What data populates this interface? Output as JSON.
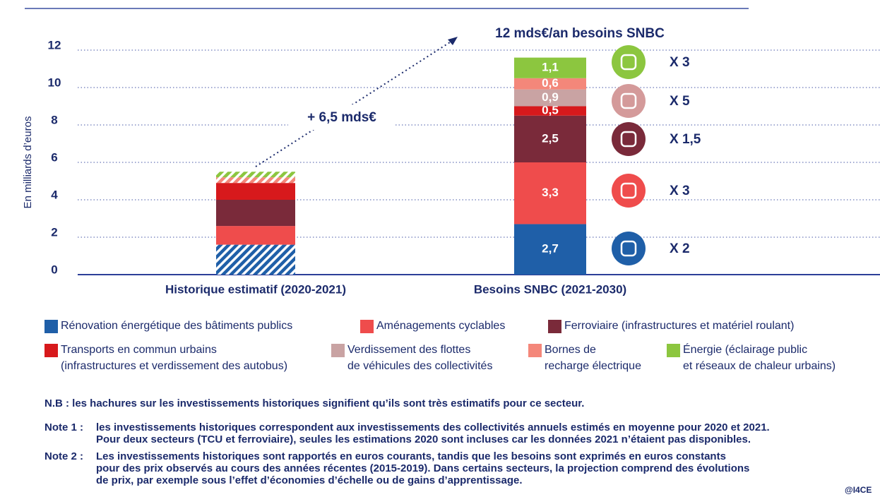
{
  "chart_data": {
    "type": "bar",
    "stacked": true,
    "y_label": "En milliards d’euros",
    "categories": [
      "Historique estimatif (2020-2021)",
      "Besoins SNBC (2021-2030)"
    ],
    "ylim": [
      0,
      12
    ],
    "yticks": [
      0,
      2,
      4,
      6,
      8,
      10,
      12
    ],
    "grid": true,
    "series": [
      {
        "name": "Rénovation énergétique des bâtiments publics",
        "color": "#1f5fa8",
        "values": [
          1.6,
          2.7
        ],
        "value_labels": [
          null,
          "2,7"
        ],
        "hatched": [
          true,
          false
        ]
      },
      {
        "name": "Aménagements cyclables",
        "color": "#ef4c4c",
        "values": [
          1.0,
          3.3
        ],
        "value_labels": [
          null,
          "3,3"
        ],
        "hatched": [
          false,
          false
        ]
      },
      {
        "name": "Ferroviaire (infrastructures et matériel roulant)",
        "color": "#7a2a3a",
        "values": [
          1.4,
          2.5
        ],
        "value_labels": [
          null,
          "2,5"
        ],
        "hatched": [
          false,
          false
        ]
      },
      {
        "name": "Transports en commun urbains\n(infrastructures et verdissement des autobus)",
        "color": "#d7191c",
        "values": [
          0.9,
          0.5
        ],
        "value_labels": [
          null,
          "0,5"
        ],
        "hatched": [
          false,
          false
        ]
      },
      {
        "name": "Verdissement des flottes\nde véhicules des collectivités",
        "color": "#c9a3a3",
        "values": [
          0,
          0.9
        ],
        "value_labels": [
          null,
          "0,9"
        ],
        "hatched": [
          true,
          false
        ]
      },
      {
        "name": "Bornes de\nrecharge électrique",
        "color": "#f4877a",
        "values": [
          0.3,
          0.6
        ],
        "value_labels": [
          null,
          "0,6"
        ],
        "hatched": [
          true,
          false
        ]
      },
      {
        "name": "Énergie (éclairage public\net réseaux de chaleur urbains)",
        "color": "#8cc63f",
        "values": [
          0.3,
          1.1
        ],
        "value_labels": [
          null,
          "1,1"
        ],
        "hatched": [
          true,
          false
        ]
      }
    ],
    "annotations": [
      "12 mds€/an besoins SNBC",
      "+ 6,5 mds€"
    ],
    "multipliers": [
      {
        "label": "X 3",
        "color": "#8cc63f"
      },
      {
        "label": "X 5",
        "color": "#d49a9a"
      },
      {
        "label": "X 1,5",
        "color": "#7a2a3a"
      },
      {
        "label": "X 3",
        "color": "#ef4c4c"
      },
      {
        "label": "X 2",
        "color": "#1f5fa8"
      }
    ]
  },
  "notes": {
    "nb": "N.B : les hachures sur les investissements historiques signifient qu’ils sont très estimatifs pour ce secteur.",
    "items": [
      {
        "label": "Note 1 :",
        "lines": [
          "les investissements historiques correspondent aux investissements des collectivités annuels estimés en moyenne pour 2020 et 2021.",
          "Pour deux secteurs (TCU et ferroviaire), seules les estimations 2020 sont incluses car les données 2021 n’étaient pas disponibles."
        ]
      },
      {
        "label": "Note 2 :",
        "lines": [
          "Les investissements historiques sont rapportés en euros courants, tandis que les besoins sont exprimés en euros constants",
          "pour des prix observés au cours des années récentes (2015-2019). Dans certains secteurs, la projection comprend des évolutions",
          "de prix, par exemple sous l’effet d’économies d’échelle ou de gains d’apprentissage."
        ]
      }
    ],
    "credit": "@I4CE"
  }
}
